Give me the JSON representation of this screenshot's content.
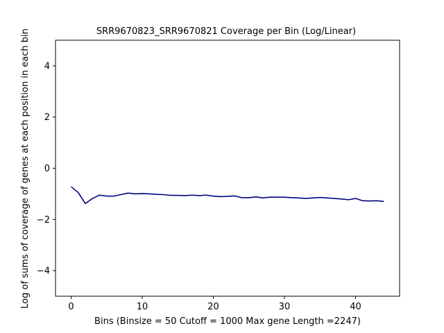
{
  "chart_data": {
    "type": "line",
    "title": "SRR9670823_SRR9670821 Coverage per Bin (Log/Linear)",
    "xlabel": "Bins  (Binsize = 50 Cutoff = 1000 Max gene Length =2247)",
    "ylabel": "Log of sums of coverage of genes at each position in each bin",
    "xlim": [
      -2.2,
      46.2
    ],
    "ylim": [
      -5,
      5
    ],
    "xticks": [
      0,
      10,
      20,
      30,
      40
    ],
    "yticks": [
      -4,
      -2,
      0,
      2,
      4
    ],
    "grid": false,
    "series_color": "#000080",
    "series": [
      {
        "x": [
          0,
          1,
          2,
          3,
          4,
          5,
          6,
          7,
          8,
          9,
          10,
          11,
          12,
          13,
          14,
          15,
          16,
          17,
          18,
          19,
          20,
          21,
          22,
          23,
          24,
          25,
          26,
          27,
          28,
          29,
          30,
          31,
          32,
          33,
          34,
          35,
          36,
          37,
          38,
          39,
          40,
          41,
          42,
          43,
          44
        ],
        "values": [
          -0.72,
          -0.95,
          -1.38,
          -1.18,
          -1.05,
          -1.09,
          -1.09,
          -1.03,
          -0.97,
          -1.0,
          -0.99,
          -1.0,
          -1.02,
          -1.03,
          -1.06,
          -1.06,
          -1.07,
          -1.05,
          -1.07,
          -1.05,
          -1.09,
          -1.11,
          -1.1,
          -1.08,
          -1.15,
          -1.15,
          -1.12,
          -1.16,
          -1.13,
          -1.13,
          -1.13,
          -1.15,
          -1.16,
          -1.18,
          -1.16,
          -1.14,
          -1.16,
          -1.18,
          -1.2,
          -1.23,
          -1.18,
          -1.27,
          -1.28,
          -1.27,
          -1.3
        ]
      }
    ]
  }
}
